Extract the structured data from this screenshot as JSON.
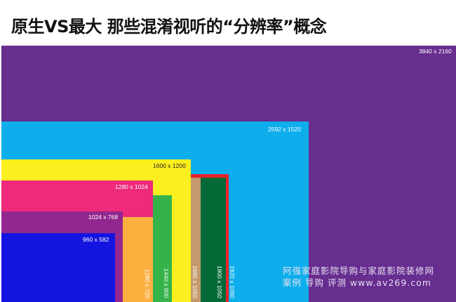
{
  "title": "原生VS最大 那些混淆视听的“分辨率”概念",
  "resolutions": [
    {
      "label": "3840 x 2160",
      "color": "#672d8f"
    },
    {
      "label": "2592 x 1520",
      "color": "#0eaeec"
    },
    {
      "label": "1600 x 1200",
      "color": "#fcef1f"
    },
    {
      "label": "1920 x 1080",
      "color": "#e5232a"
    },
    {
      "label": "1680 x 1050",
      "color": "#c49a6c"
    },
    {
      "label": "1900 x 1050",
      "color": "#036936"
    },
    {
      "label": "1280 x 1024",
      "color": "#ee2a7b"
    },
    {
      "label": "1440 x 900",
      "color": "#35b34a"
    },
    {
      "label": "1024 x 768",
      "color": "#92278f"
    },
    {
      "label": "1280 x 720",
      "color": "#fbb040"
    },
    {
      "label": "960 x 582",
      "color": "#1414e0"
    }
  ],
  "watermark": {
    "line1": "阿强家庭影院导购与家庭影院装修网",
    "line2": "案例 导购 评测  www.av269.com"
  }
}
